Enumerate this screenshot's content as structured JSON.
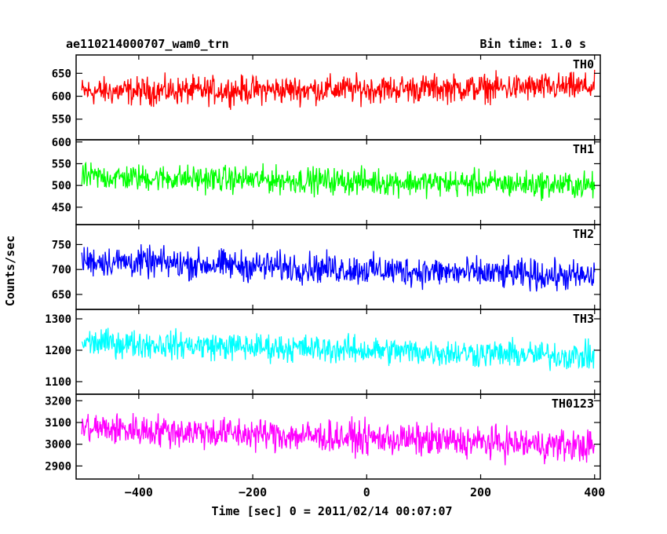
{
  "chart_data": {
    "type": "line",
    "title": "ae110214000707_wam0_trn",
    "subtitle": "Bin time: 1.0 s",
    "xlabel": "Time [sec] 0 = 2011/02/14 00:07:07",
    "ylabel": "Counts/sec",
    "xlim": [
      -510,
      410
    ],
    "x_ticks": [
      "−400",
      "−200",
      "0",
      "200",
      "400"
    ],
    "x_tick_values": [
      -400,
      -200,
      0,
      200,
      400
    ],
    "grid": false,
    "panels": [
      {
        "name": "TH0",
        "color": "#ff0000",
        "ylim": [
          505,
          690
        ],
        "y_ticks": [
          "550",
          "600",
          "650"
        ],
        "y_tick_values": [
          550,
          600,
          650
        ],
        "series": {
          "x_start": -500,
          "x_end": 400,
          "step": 1,
          "baseline_start": 610,
          "baseline_end": 620,
          "noise_halfwidth": 45
        }
      },
      {
        "name": "TH1",
        "color": "#00ff00",
        "ylim": [
          410,
          605
        ],
        "y_ticks": [
          "450",
          "500",
          "550",
          "600"
        ],
        "y_tick_values": [
          450,
          500,
          550,
          600
        ],
        "series": {
          "x_start": -500,
          "x_end": 400,
          "step": 1,
          "baseline_start": 520,
          "baseline_end": 500,
          "noise_halfwidth": 45
        }
      },
      {
        "name": "TH2",
        "color": "#0000ff",
        "ylim": [
          620,
          790
        ],
        "y_ticks": [
          "650",
          "700",
          "750"
        ],
        "y_tick_values": [
          650,
          700,
          750
        ],
        "series": {
          "x_start": -500,
          "x_end": 400,
          "step": 1,
          "baseline_start": 718,
          "baseline_end": 685,
          "noise_halfwidth": 45
        }
      },
      {
        "name": "TH3",
        "color": "#00ffff",
        "ylim": [
          1060,
          1330
        ],
        "y_ticks": [
          "1100",
          "1200",
          "1300"
        ],
        "y_tick_values": [
          1100,
          1200,
          1300
        ],
        "series": {
          "x_start": -500,
          "x_end": 400,
          "step": 1,
          "baseline_start": 1225,
          "baseline_end": 1180,
          "noise_halfwidth": 65
        }
      },
      {
        "name": "TH0123",
        "color": "#ff00ff",
        "ylim": [
          2840,
          3230
        ],
        "y_ticks": [
          "2900",
          "3000",
          "3100",
          "3200"
        ],
        "y_tick_values": [
          2900,
          3000,
          3100,
          3200
        ],
        "series": {
          "x_start": -500,
          "x_end": 400,
          "step": 1,
          "baseline_start": 3075,
          "baseline_end": 2990,
          "noise_halfwidth": 110
        }
      }
    ]
  }
}
